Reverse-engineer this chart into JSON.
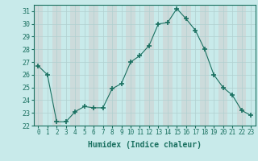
{
  "x": [
    0,
    1,
    2,
    3,
    4,
    5,
    6,
    7,
    8,
    9,
    10,
    11,
    12,
    13,
    14,
    15,
    16,
    17,
    18,
    19,
    20,
    21,
    22,
    23
  ],
  "y": [
    26.7,
    26.0,
    22.3,
    22.3,
    23.1,
    23.5,
    23.4,
    23.4,
    24.9,
    25.3,
    27.0,
    27.5,
    28.3,
    30.0,
    30.1,
    31.2,
    30.4,
    29.5,
    28.0,
    26.0,
    25.0,
    24.4,
    23.2,
    22.8
  ],
  "line_color": "#1a7060",
  "marker_color": "#1a7060",
  "bg_color": "#c8eaea",
  "grid_color": "#b0d0d0",
  "xlabel": "Humidex (Indice chaleur)",
  "ylim": [
    22,
    31.5
  ],
  "xlim": [
    -0.5,
    23.5
  ],
  "yticks": [
    22,
    23,
    24,
    25,
    26,
    27,
    28,
    29,
    30,
    31
  ],
  "xticks": [
    0,
    1,
    2,
    3,
    4,
    5,
    6,
    7,
    8,
    9,
    10,
    11,
    12,
    13,
    14,
    15,
    16,
    17,
    18,
    19,
    20,
    21,
    22,
    23
  ],
  "label_fontsize": 5.5,
  "xlabel_fontsize": 7
}
